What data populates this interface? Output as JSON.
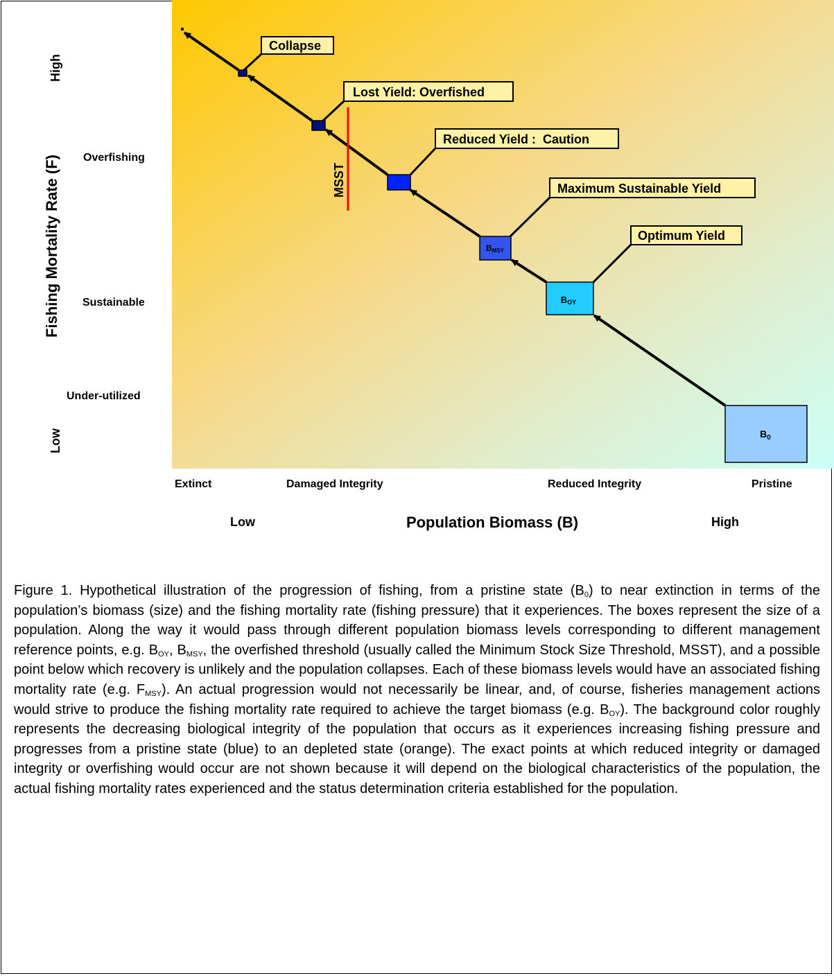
{
  "diagram": {
    "labels": {
      "collapse": "Collapse",
      "lost_yield": "Lost Yield: Overfished",
      "reduced_yield": "Reduced Yield :  Caution",
      "msy": "Maximum Sustainable Yield",
      "optimum": "Optimum Yield"
    },
    "threshold_label": "MSST",
    "boxes": {
      "b_msy": {
        "base": "B",
        "sub": "MSY"
      },
      "b_oy": {
        "base": "B",
        "sub": "OY"
      },
      "b_0": {
        "base": "B",
        "sub": "0"
      }
    },
    "y_axis": {
      "title": "Fishing Mortality Rate (F)",
      "high": "High",
      "low": "Low",
      "levels": [
        "Overfishing",
        "Sustainable",
        "Under-utilized"
      ]
    },
    "x_axis": {
      "title": "Population Biomass (B)",
      "low": "Low",
      "high": "High",
      "levels": [
        "Extinct",
        "Damaged Integrity",
        "Reduced Integrity",
        "Pristine"
      ]
    },
    "colors": {
      "depleted": "#ffc800",
      "pristine": "#ccfff6",
      "threshold": "#ff0000",
      "box_b0": "#99ccff",
      "box_boy": "#22ccff",
      "box_bmsy": "#3355ee",
      "box_reduced": "#0022ff",
      "box_small": "#000e80"
    }
  },
  "caption": {
    "p1": "Figure 1.  Hypothetical illustration of the progression of fishing, from a pristine state (B",
    "s1": "0",
    "p2": ") to near extinction in terms of the population’s biomass (size) and the fishing mortality rate (fishing pressure) that it experiences.  The boxes represent the size of a population.  Along the way it would pass through different population biomass levels corresponding to different management reference points, e.g. B",
    "s2": "OY",
    "p3": ", B",
    "s3": "MSY",
    "p4": ", the overfished threshold (usually called the Minimum Stock Size Threshold, MSST), and a possible point below which recovery is unlikely and the population collapses.   Each of these biomass levels would have an associated fishing mortality rate (e.g. F",
    "s4": "MSY",
    "p5": ").  An actual progression would not necessarily be linear, and, of course, fisheries management actions would strive to produce the fishing mortality rate required to achieve the target biomass (e.g. B",
    "s5": "OY",
    "p6": ").   The background color roughly represents the decreasing biological integrity of the population that occurs as it experiences increasing fishing pressure and progresses from a pristine state (blue) to an depleted state (orange).  The exact points at which reduced integrity or damaged integrity or overfishing would occur are not shown because it will depend on the biological characteristics of the population, the actual fishing mortality rates experienced and the status determination criteria established for the population."
  }
}
